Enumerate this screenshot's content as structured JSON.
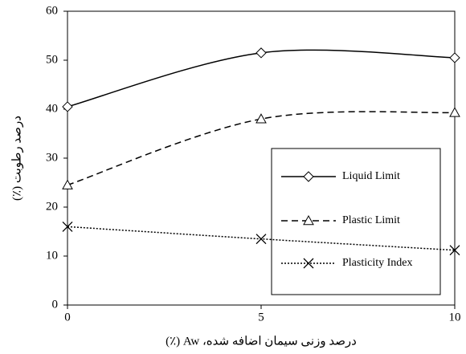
{
  "chart_data": {
    "type": "line",
    "x_label": "درصد وزنی سیمان اضافه شده، Aw (٪)",
    "y_label": "درصد رطوبت (٪)",
    "x": [
      0,
      5,
      10
    ],
    "xlim": [
      0,
      10
    ],
    "xticks": [
      0,
      5,
      10
    ],
    "ylim": [
      0,
      60
    ],
    "yticks": [
      0,
      10,
      20,
      30,
      40,
      50,
      60
    ],
    "legend": "lower right",
    "series": [
      {
        "name": "Liquid Limit",
        "color": "#000000",
        "dash": "solid",
        "marker": "diamond",
        "values": [
          40.5,
          51.5,
          50.5
        ]
      },
      {
        "name": "Plastic Limit",
        "color": "#000000",
        "dash": "dashed",
        "marker": "triangle",
        "values": [
          24.5,
          38,
          39.3
        ]
      },
      {
        "name": "Plasticity Index",
        "color": "#000000",
        "dash": "dotted",
        "marker": "x",
        "values": [
          16,
          13.5,
          11.2
        ]
      }
    ]
  }
}
